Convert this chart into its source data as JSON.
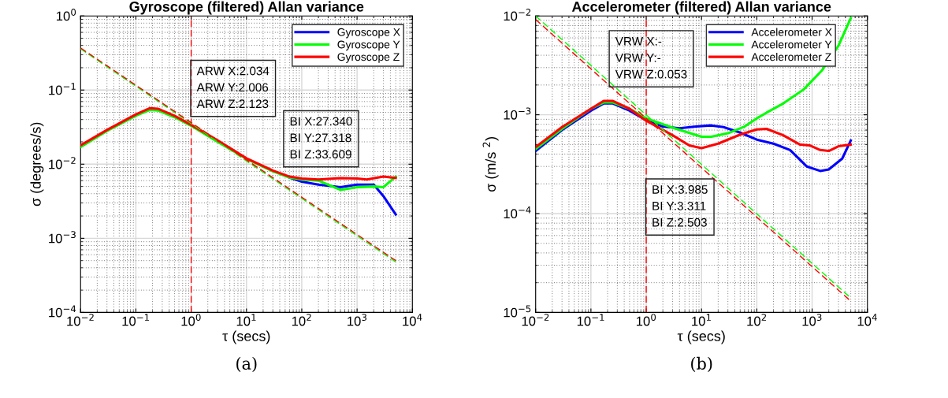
{
  "chart_data": [
    {
      "type": "line",
      "title": "Gyroscope (filtered) Allan variance",
      "xlabel": "τ (secs)",
      "ylabel": "σ (degrees/s)",
      "log": "xy",
      "grid": true,
      "legend": "top right",
      "line_style": "solid",
      "marker": "none",
      "xlim": [
        0.01,
        10000
      ],
      "ylim": [
        0.0001,
        1
      ],
      "xticks": [
        {
          "value": 0.01,
          "label": "10$^{−2}$"
        },
        {
          "value": 0.1,
          "label": "10$^{−1}$"
        },
        {
          "value": 1,
          "label": "10$^{0}$"
        },
        {
          "value": 10,
          "label": "10$^{1}$"
        },
        {
          "value": 100,
          "label": "10$^{2}$"
        },
        {
          "value": 1000,
          "label": "10$^{3}$"
        },
        {
          "value": 10000,
          "label": "10$^{4}$"
        }
      ],
      "yticks": [
        {
          "value": 0.0001,
          "label": "10$^{−4}$"
        },
        {
          "value": 0.001,
          "label": "10$^{−3}$"
        },
        {
          "value": 0.01,
          "label": "10$^{−2}$"
        },
        {
          "value": 0.1,
          "label": "10$^{−1}$"
        },
        {
          "value": 1,
          "label": "10$^{0}$"
        }
      ],
      "series": [
        {
          "name": "Gyroscope X",
          "color": "#0000ff",
          "x": [
            60,
            100,
            200,
            500,
            1000,
            2000,
            3000,
            5000
          ],
          "values": [
            0.0066,
            0.0058,
            0.0053,
            0.0049,
            0.0053,
            0.0053,
            0.0037,
            0.0021
          ]
        },
        {
          "name": "Gyroscope Y",
          "color": "#00ff00",
          "x": [
            0.01,
            0.03,
            0.1,
            0.18,
            0.25,
            0.5,
            1,
            3,
            10,
            30,
            60,
            100,
            200,
            500,
            1000,
            2000,
            3000,
            5000
          ],
          "values": [
            0.017,
            0.028,
            0.045,
            0.054,
            0.053,
            0.043,
            0.033,
            0.02,
            0.0118,
            0.008,
            0.0066,
            0.0062,
            0.006,
            0.0045,
            0.0049,
            0.005,
            0.0049,
            0.0068
          ]
        },
        {
          "name": "Gyroscope Z",
          "color": "#ff0000",
          "x": [
            0.01,
            0.03,
            0.1,
            0.18,
            0.25,
            0.5,
            1,
            3,
            10,
            30,
            60,
            100,
            200,
            500,
            1000,
            1500,
            3000,
            5000
          ],
          "values": [
            0.018,
            0.029,
            0.047,
            0.057,
            0.056,
            0.045,
            0.034,
            0.021,
            0.012,
            0.0082,
            0.0068,
            0.0064,
            0.0062,
            0.0065,
            0.0064,
            0.0062,
            0.0068,
            0.0065
          ]
        },
        {
          "type": "line",
          "line_style": "dashed",
          "color": "#00ff00",
          "x": [
            0.01,
            5000
          ],
          "values": [
            0.36,
            0.00048
          ]
        },
        {
          "type": "line",
          "line_style": "dashed",
          "color": "#ff0000",
          "x": [
            0.01,
            5000
          ],
          "values": [
            0.37,
            0.0005
          ]
        }
      ],
      "ref_lines": [
        {
          "axis": "x",
          "value": 1,
          "color": "#ff0000",
          "line_style": "dashed"
        }
      ],
      "annotations": [
        "ARW X:2.034\nARW Y:2.006\nARW Z:2.123",
        "BI X:27.340\nBI Y:27.318\nBI Z:33.609",
        "(a)"
      ]
    },
    {
      "type": "line",
      "title": "Accelerometer (filtered) Allan variance",
      "xlabel": "τ (secs)",
      "ylabel": "σ (m/s $^{2}$)",
      "log": "xy",
      "grid": true,
      "legend": "top right",
      "line_style": "solid",
      "marker": "none",
      "xlim": [
        0.01,
        10000
      ],
      "ylim": [
        1e-05,
        0.01
      ],
      "xticks": [
        {
          "value": 0.01,
          "label": "10$^{−2}$"
        },
        {
          "value": 0.1,
          "label": "10$^{−1}$"
        },
        {
          "value": 1,
          "label": "10$^{0}$"
        },
        {
          "value": 10,
          "label": "10$^{1}$"
        },
        {
          "value": 100,
          "label": "10$^{2}$"
        },
        {
          "value": 1000,
          "label": "10$^{3}$"
        },
        {
          "value": 10000,
          "label": "10$^{4}$"
        }
      ],
      "yticks": [
        {
          "value": 1e-05,
          "label": "10$^{−5}$"
        },
        {
          "value": 0.0001,
          "label": "10$^{−4}$"
        },
        {
          "value": 0.001,
          "label": "10$^{−3}$"
        },
        {
          "value": 0.01,
          "label": "10$^{−2}$"
        }
      ],
      "series": [
        {
          "name": "Accelerometer X",
          "color": "#0000ff",
          "x": [
            0.01,
            0.03,
            0.1,
            0.17,
            0.25,
            0.5,
            1,
            2,
            4,
            8,
            15,
            25,
            50,
            100,
            200,
            400,
            800,
            1400,
            2000,
            3500,
            5000
          ],
          "values": [
            0.00043,
            0.0007,
            0.0011,
            0.0013,
            0.0013,
            0.0011,
            0.00088,
            0.00076,
            0.00073,
            0.00076,
            0.00078,
            0.00075,
            0.00066,
            0.00056,
            0.00051,
            0.00044,
            0.0003,
            0.00027,
            0.00028,
            0.00036,
            0.00055
          ]
        },
        {
          "name": "Accelerometer Y",
          "color": "#00ff00",
          "x": [
            0.01,
            0.03,
            0.1,
            0.17,
            0.25,
            0.5,
            1,
            3,
            10,
            15,
            30,
            60,
            100,
            150,
            300,
            700,
            1500,
            3000,
            5000
          ],
          "values": [
            0.00045,
            0.00072,
            0.00115,
            0.00133,
            0.00133,
            0.00115,
            0.00092,
            0.00074,
            0.0006,
            0.0006,
            0.00065,
            0.00076,
            0.00092,
            0.00105,
            0.0013,
            0.0018,
            0.0028,
            0.005,
            0.0095
          ]
        },
        {
          "name": "Accelerometer Z",
          "color": "#ff0000",
          "x": [
            0.01,
            0.03,
            0.1,
            0.17,
            0.25,
            0.5,
            1,
            3,
            6,
            10,
            20,
            50,
            100,
            150,
            300,
            600,
            900,
            1400,
            2000,
            3000,
            5000
          ],
          "values": [
            0.00047,
            0.00075,
            0.00115,
            0.00138,
            0.00138,
            0.00115,
            0.00087,
            0.00062,
            0.00049,
            0.00046,
            0.00051,
            0.00063,
            0.00071,
            0.00072,
            0.00062,
            0.0005,
            0.00049,
            0.00044,
            0.00043,
            0.00048,
            0.0005
          ]
        },
        {
          "type": "line",
          "line_style": "dashed",
          "color": "#00ff00",
          "x": [
            0.01,
            5000
          ],
          "values": [
            0.01,
            1.4e-05
          ]
        },
        {
          "type": "line",
          "line_style": "dashed",
          "color": "#ff0000",
          "x": [
            0.01,
            5000
          ],
          "values": [
            0.0092,
            1.3e-05
          ]
        }
      ],
      "ref_lines": [
        {
          "axis": "x",
          "value": 1,
          "color": "#ff0000",
          "line_style": "dashed"
        }
      ],
      "annotations": [
        "VRW X:-\nVRW Y:-\nVRW Z:0.053",
        "BI X:3.985\nBI Y:3.311\nBI Z:2.503",
        "(b)"
      ]
    }
  ]
}
